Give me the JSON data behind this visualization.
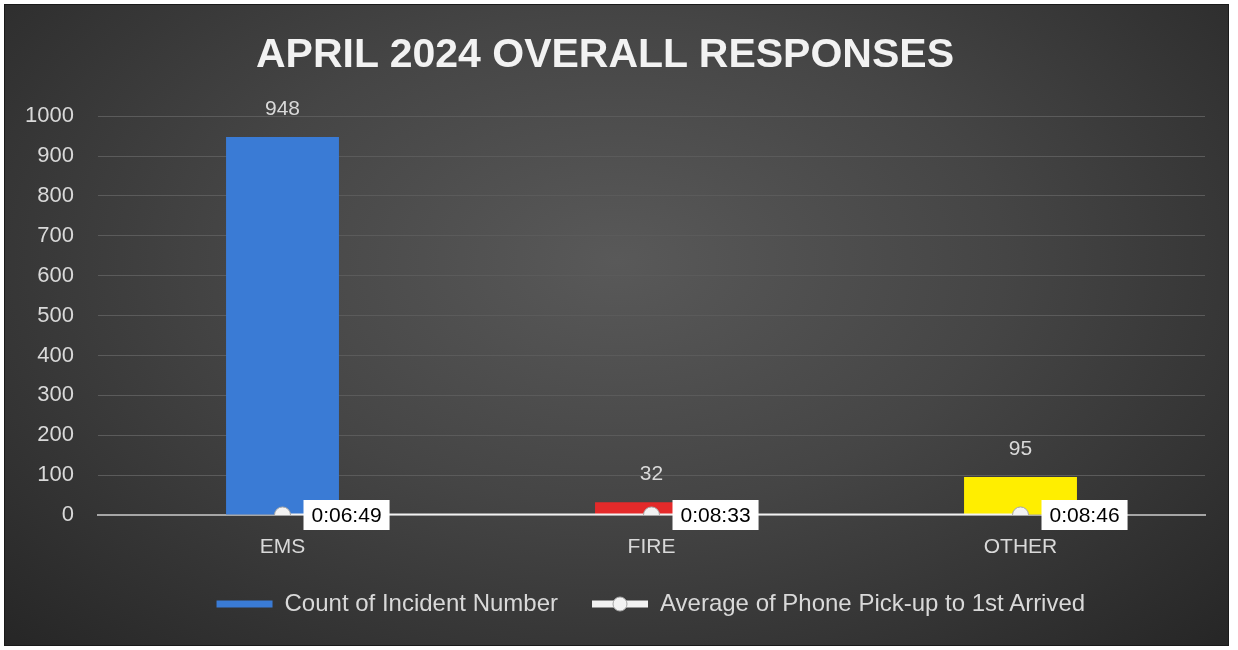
{
  "chart_data": {
    "type": "bar",
    "title": "APRIL 2024 OVERALL RESPONSES",
    "categories": [
      "EMS",
      "FIRE",
      "OTHER"
    ],
    "series": [
      {
        "name": "Count of Incident Number",
        "colors": [
          "#3a7bd5",
          "#e42a2a",
          "#ffee00"
        ],
        "values": [
          948,
          32,
          95
        ]
      },
      {
        "name": "Average of Phone Pick-up to 1st Arrived",
        "type": "line",
        "color": "#f2f2f2",
        "marker": "circle",
        "values": [
          0.1136,
          0.1425,
          0.1461
        ],
        "value_labels": [
          "0:06:49",
          "0:08:33",
          "0:08:46"
        ]
      }
    ],
    "ylim": [
      0,
      1000
    ],
    "yticks": [
      0,
      100,
      200,
      300,
      400,
      500,
      600,
      700,
      800,
      900,
      1000
    ],
    "grid": "y",
    "legend": "bottom",
    "data_labels": true
  }
}
